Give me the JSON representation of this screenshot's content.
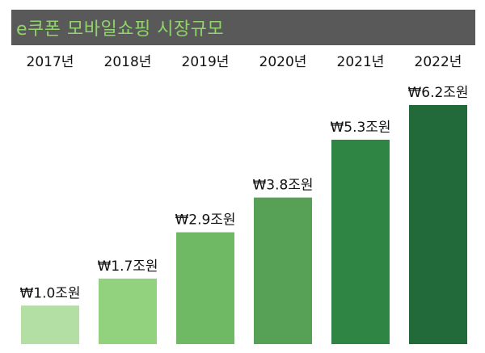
{
  "chart_data": {
    "type": "bar",
    "title": "e쿠폰 모바일쇼핑 시장규모",
    "categories": [
      "2017년",
      "2018년",
      "2019년",
      "2020년",
      "2021년",
      "2022년"
    ],
    "values": [
      1.0,
      1.7,
      2.9,
      3.8,
      5.3,
      6.2
    ],
    "data_labels": [
      "₩1.0조원",
      "₩1.7조원",
      "₩2.9조원",
      "₩3.8조원",
      "₩5.3조원",
      "₩6.2조원"
    ],
    "unit": "조원",
    "xlabel": "",
    "ylabel": "",
    "ylim": [
      0,
      6.2
    ],
    "grid": false,
    "legend": "none",
    "category_axis_position": "top",
    "colors": [
      "#b3dfa5",
      "#92d27e",
      "#6fb965",
      "#56a155",
      "#2f8544",
      "#236a3b"
    ],
    "title_color": "#92d36e",
    "title_background": "#595959"
  }
}
